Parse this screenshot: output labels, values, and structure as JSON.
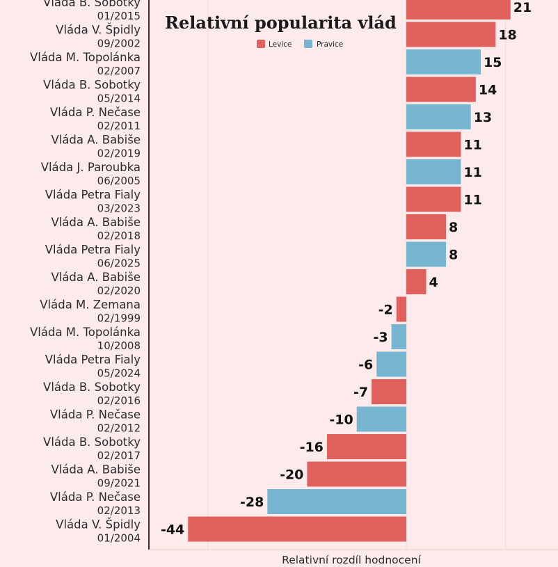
{
  "chart_data": {
    "type": "bar",
    "orientation": "horizontal",
    "title": "Relativní popularita vlád",
    "xlabel": "Relativní rozdíl hodnocení",
    "xlim": [
      -44,
      21
    ],
    "grid": true,
    "legend_position": "top",
    "legend": [
      {
        "key": "levice",
        "label": "Levice",
        "color": "#e0605e"
      },
      {
        "key": "pravice",
        "label": "Pravice",
        "color": "#76b6d1"
      }
    ],
    "categories": [
      {
        "name": "Vláda B. Sobotky",
        "date": "01/2015",
        "value": 21,
        "group": "levice"
      },
      {
        "name": "Vláda V. Špidly",
        "date": "09/2002",
        "value": 18,
        "group": "levice"
      },
      {
        "name": "Vláda M. Topolánka",
        "date": "02/2007",
        "value": 15,
        "group": "pravice"
      },
      {
        "name": "Vláda B. Sobotky",
        "date": "05/2014",
        "value": 14,
        "group": "levice"
      },
      {
        "name": "Vláda P. Nečase",
        "date": "02/2011",
        "value": 13,
        "group": "pravice"
      },
      {
        "name": "Vláda A. Babiše",
        "date": "02/2019",
        "value": 11,
        "group": "levice"
      },
      {
        "name": "Vláda J. Paroubka",
        "date": "06/2005",
        "value": 11,
        "group": "pravice"
      },
      {
        "name": "Vláda Petra Fialy",
        "date": "03/2023",
        "value": 11,
        "group": "levice"
      },
      {
        "name": "Vláda A. Babiše",
        "date": "02/2018",
        "value": 8,
        "group": "levice"
      },
      {
        "name": "Vláda Petra Fialy",
        "date": "06/2025",
        "value": 8,
        "group": "pravice"
      },
      {
        "name": "Vláda A. Babiše",
        "date": "02/2020",
        "value": 4,
        "group": "levice"
      },
      {
        "name": "Vláda M. Zemana",
        "date": "02/1999",
        "value": -2,
        "group": "levice"
      },
      {
        "name": "Vláda M. Topolánka",
        "date": "10/2008",
        "value": -3,
        "group": "pravice"
      },
      {
        "name": "Vláda Petra Fialy",
        "date": "05/2024",
        "value": -6,
        "group": "pravice"
      },
      {
        "name": "Vláda B. Sobotky",
        "date": "02/2016",
        "value": -7,
        "group": "levice"
      },
      {
        "name": "Vláda P. Nečase",
        "date": "02/2012",
        "value": -10,
        "group": "pravice"
      },
      {
        "name": "Vláda B. Sobotky",
        "date": "02/2017",
        "value": -16,
        "group": "levice"
      },
      {
        "name": "Vláda A. Babiše",
        "date": "09/2021",
        "value": -20,
        "group": "levice"
      },
      {
        "name": "Vláda P. Nečase",
        "date": "02/2013",
        "value": -28,
        "group": "pravice"
      },
      {
        "name": "Vláda V. Špidly",
        "date": "01/2004",
        "value": -44,
        "group": "levice"
      }
    ]
  }
}
